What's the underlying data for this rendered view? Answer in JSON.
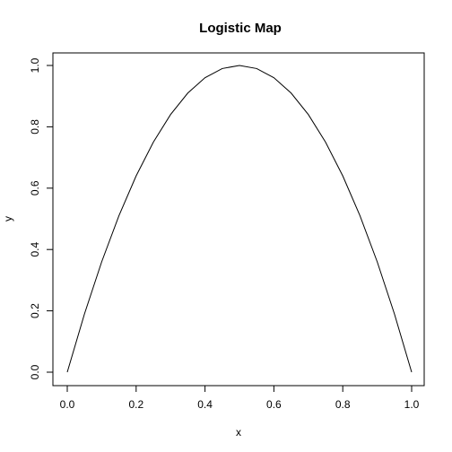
{
  "chart_data": {
    "type": "line",
    "title": "Logistic Map",
    "xlabel": "x",
    "ylabel": "y",
    "xlim": [
      0.0,
      1.0
    ],
    "ylim": [
      0.0,
      1.0
    ],
    "x_ticks": [
      "0.0",
      "0.2",
      "0.4",
      "0.6",
      "0.8",
      "1.0"
    ],
    "y_ticks": [
      "0.0",
      "0.2",
      "0.4",
      "0.6",
      "0.8",
      "1.0"
    ],
    "grid": false,
    "legend": "none",
    "series": [
      {
        "x": [
          0.0,
          0.05,
          0.1,
          0.15,
          0.2,
          0.25,
          0.3,
          0.35,
          0.4,
          0.45,
          0.5,
          0.55,
          0.6,
          0.65,
          0.7,
          0.75,
          0.8,
          0.85,
          0.9,
          0.95,
          1.0
        ],
        "y": [
          0.0,
          0.19,
          0.36,
          0.51,
          0.64,
          0.75,
          0.84,
          0.91,
          0.96,
          0.99,
          1.0,
          0.99,
          0.96,
          0.91,
          0.84,
          0.75,
          0.64,
          0.51,
          0.36,
          0.19,
          0.0
        ],
        "color": "#000000"
      }
    ]
  }
}
